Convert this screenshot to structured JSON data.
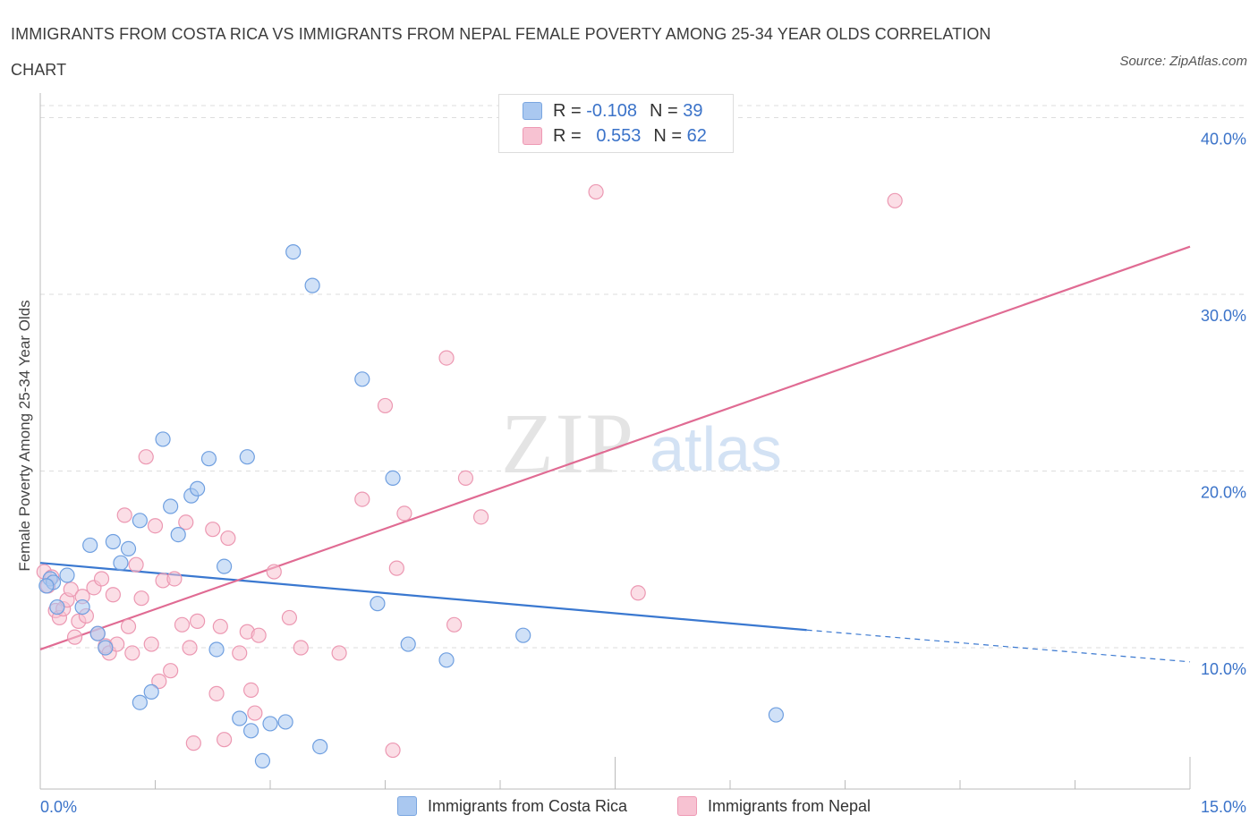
{
  "title": "IMMIGRANTS FROM COSTA RICA VS IMMIGRANTS FROM NEPAL FEMALE POVERTY AMONG 25-34 YEAR OLDS CORRELATION CHART",
  "source": "Source: ZipAtlas.com",
  "watermark": {
    "zip": "ZIP",
    "atlas": "atlas"
  },
  "legend": {
    "rows": [
      {
        "r_label": "R =",
        "r_value": "-0.108",
        "n_label": "N =",
        "n_value": "39",
        "color": "#aac8f0",
        "border": "#7aa6e0"
      },
      {
        "r_label": "R =",
        "r_value": "0.553",
        "n_label": "N =",
        "n_value": "62",
        "color": "#f7c2d2",
        "border": "#ee9ab4"
      }
    ]
  },
  "colors": {
    "blue_fill": "#aac8f0",
    "blue_stroke": "#6f9fe0",
    "blue_line": "#3a78d0",
    "pink_fill": "#f7c2d2",
    "pink_stroke": "#ec98b2",
    "pink_line": "#e06b93",
    "grid": "#dddddd",
    "tick_label": "#3b73c9"
  },
  "chart_data": {
    "type": "scatter",
    "title": "IMMIGRANTS FROM COSTA RICA VS IMMIGRANTS FROM NEPAL FEMALE POVERTY AMONG 25-34 YEAR OLDS CORRELATION CHART",
    "xlabel": "",
    "ylabel": "Female Poverty Among 25-34 Year Olds",
    "xlim": [
      0,
      15
    ],
    "ylim": [
      2.0,
      42.0
    ],
    "x_tick_labels": [
      "0.0%",
      "15.0%"
    ],
    "y_ticks": [
      10,
      20,
      30,
      40
    ],
    "y_tick_labels": [
      "10.0%",
      "20.0%",
      "30.0%",
      "40.0%"
    ],
    "grid": true,
    "legend_position": "bottom",
    "series": [
      {
        "name": "Immigrants from Costa Rica",
        "color": "#aac8f0",
        "points": [
          [
            0.13,
            13.9
          ],
          [
            0.17,
            13.7
          ],
          [
            0.22,
            12.3
          ],
          [
            0.35,
            14.1
          ],
          [
            0.55,
            12.3
          ],
          [
            0.65,
            15.8
          ],
          [
            0.75,
            10.8
          ],
          [
            0.85,
            10.0
          ],
          [
            0.95,
            16.0
          ],
          [
            1.05,
            14.8
          ],
          [
            1.15,
            15.6
          ],
          [
            1.3,
            17.2
          ],
          [
            1.3,
            6.9
          ],
          [
            1.45,
            7.5
          ],
          [
            1.6,
            21.8
          ],
          [
            1.7,
            18.0
          ],
          [
            1.8,
            16.4
          ],
          [
            1.97,
            18.6
          ],
          [
            2.05,
            19.0
          ],
          [
            2.2,
            20.7
          ],
          [
            2.3,
            9.9
          ],
          [
            2.4,
            14.6
          ],
          [
            2.6,
            6.0
          ],
          [
            2.7,
            20.8
          ],
          [
            2.75,
            5.3
          ],
          [
            2.9,
            3.6
          ],
          [
            3.0,
            5.7
          ],
          [
            3.2,
            5.8
          ],
          [
            3.3,
            32.4
          ],
          [
            3.55,
            30.5
          ],
          [
            3.65,
            4.4
          ],
          [
            4.2,
            25.2
          ],
          [
            4.4,
            12.5
          ],
          [
            4.6,
            19.6
          ],
          [
            4.8,
            10.2
          ],
          [
            5.3,
            9.3
          ],
          [
            6.3,
            10.7
          ],
          [
            9.6,
            6.2
          ],
          [
            0.08,
            13.5
          ]
        ]
      },
      {
        "name": "Immigrants from Nepal",
        "color": "#f7c2d2",
        "points": [
          [
            0.05,
            14.3
          ],
          [
            0.1,
            13.5
          ],
          [
            0.15,
            14.0
          ],
          [
            0.2,
            12.1
          ],
          [
            0.25,
            11.7
          ],
          [
            0.3,
            12.2
          ],
          [
            0.35,
            12.7
          ],
          [
            0.4,
            13.3
          ],
          [
            0.45,
            10.6
          ],
          [
            0.5,
            11.5
          ],
          [
            0.55,
            12.9
          ],
          [
            0.6,
            11.8
          ],
          [
            0.7,
            13.4
          ],
          [
            0.75,
            10.8
          ],
          [
            0.8,
            13.9
          ],
          [
            0.85,
            10.1
          ],
          [
            0.9,
            9.7
          ],
          [
            0.95,
            13.0
          ],
          [
            1.0,
            10.2
          ],
          [
            1.1,
            17.5
          ],
          [
            1.15,
            11.2
          ],
          [
            1.2,
            9.7
          ],
          [
            1.25,
            14.7
          ],
          [
            1.32,
            12.8
          ],
          [
            1.38,
            20.8
          ],
          [
            1.45,
            10.2
          ],
          [
            1.5,
            16.9
          ],
          [
            1.55,
            8.1
          ],
          [
            1.6,
            13.8
          ],
          [
            1.7,
            8.7
          ],
          [
            1.75,
            13.9
          ],
          [
            1.85,
            11.3
          ],
          [
            1.9,
            17.1
          ],
          [
            1.95,
            10.0
          ],
          [
            2.0,
            4.6
          ],
          [
            2.05,
            11.5
          ],
          [
            2.25,
            16.7
          ],
          [
            2.3,
            7.4
          ],
          [
            2.35,
            11.2
          ],
          [
            2.4,
            4.8
          ],
          [
            2.45,
            16.2
          ],
          [
            2.6,
            9.7
          ],
          [
            2.7,
            10.9
          ],
          [
            2.75,
            7.6
          ],
          [
            2.8,
            6.3
          ],
          [
            2.85,
            10.7
          ],
          [
            3.05,
            14.3
          ],
          [
            3.25,
            11.7
          ],
          [
            3.4,
            10.0
          ],
          [
            3.9,
            9.7
          ],
          [
            4.2,
            18.4
          ],
          [
            4.5,
            23.7
          ],
          [
            4.6,
            4.2
          ],
          [
            4.65,
            14.5
          ],
          [
            4.75,
            17.6
          ],
          [
            5.3,
            26.4
          ],
          [
            5.4,
            11.3
          ],
          [
            5.55,
            19.6
          ],
          [
            5.75,
            17.4
          ],
          [
            7.25,
            35.8
          ],
          [
            7.8,
            13.1
          ],
          [
            11.15,
            35.3
          ]
        ]
      }
    ],
    "trend_lines": [
      {
        "series": "Immigrants from Costa Rica",
        "solid": [
          [
            0,
            14.8
          ],
          [
            10.0,
            11.0
          ]
        ],
        "dashed": [
          [
            10.0,
            11.0
          ],
          [
            15.0,
            9.2
          ]
        ]
      },
      {
        "series": "Immigrants from Nepal",
        "solid": [
          [
            0,
            9.9
          ],
          [
            15.0,
            32.7
          ]
        ]
      }
    ]
  }
}
